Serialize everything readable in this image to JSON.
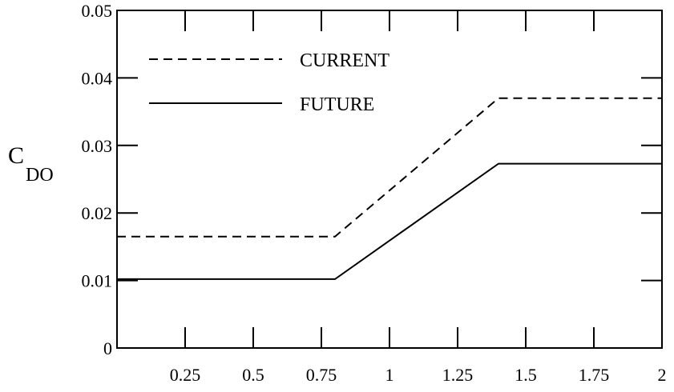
{
  "chart_data": {
    "type": "line",
    "title": "",
    "xlabel": "",
    "ylabel": {
      "main": "C",
      "subscript": "DO"
    },
    "xlim": [
      0,
      2
    ],
    "ylim": [
      0,
      0.05
    ],
    "x_ticks": [
      0.25,
      0.5,
      0.75,
      1,
      1.25,
      1.5,
      1.75,
      2
    ],
    "x_tick_labels": [
      "0.25",
      "0.5",
      "0.75",
      "1",
      "1.25",
      "1.5",
      "1.75",
      "2"
    ],
    "y_ticks": [
      0,
      0.01,
      0.02,
      0.03,
      0.04,
      0.05
    ],
    "y_tick_labels": [
      "0",
      "0.01",
      "0.02",
      "0.03",
      "0.04",
      "0.05"
    ],
    "grid": false,
    "legend_position": "top-left",
    "series": [
      {
        "name": "CURRENT",
        "style": "dashed",
        "color": "#000000",
        "x": [
          0,
          0.8,
          1.4,
          2
        ],
        "y": [
          0.0165,
          0.0165,
          0.037,
          0.037
        ]
      },
      {
        "name": "FUTURE",
        "style": "solid",
        "color": "#000000",
        "x": [
          0,
          0.8,
          1.4,
          2
        ],
        "y": [
          0.0102,
          0.0102,
          0.0273,
          0.0273
        ]
      }
    ]
  }
}
